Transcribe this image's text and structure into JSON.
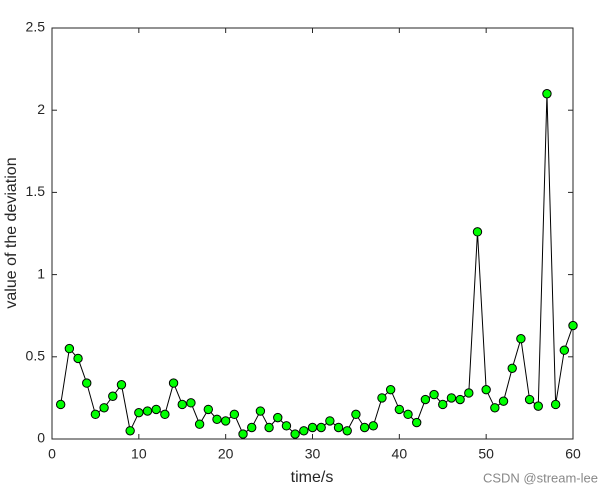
{
  "chart_data": {
    "type": "line",
    "xlabel": "time/s",
    "ylabel": "value of the deviation",
    "x": [
      1,
      2,
      3,
      4,
      5,
      6,
      7,
      8,
      9,
      10,
      11,
      12,
      13,
      14,
      15,
      16,
      17,
      18,
      19,
      20,
      21,
      22,
      23,
      24,
      25,
      26,
      27,
      28,
      29,
      30,
      31,
      32,
      33,
      34,
      35,
      36,
      37,
      38,
      39,
      40,
      41,
      42,
      43,
      44,
      45,
      46,
      47,
      48,
      49,
      50,
      51,
      52,
      53,
      54,
      55,
      56,
      57,
      58,
      59,
      60
    ],
    "series": [
      {
        "color": "#000000",
        "marker_color": "#00ff00",
        "values": [
          0.21,
          0.55,
          0.49,
          0.34,
          0.15,
          0.19,
          0.26,
          0.33,
          0.05,
          0.16,
          0.17,
          0.18,
          0.15,
          0.34,
          0.21,
          0.22,
          0.09,
          0.18,
          0.12,
          0.11,
          0.15,
          0.03,
          0.07,
          0.17,
          0.07,
          0.13,
          0.08,
          0.03,
          0.05,
          0.07,
          0.07,
          0.11,
          0.07,
          0.05,
          0.15,
          0.07,
          0.08,
          0.25,
          0.3,
          0.18,
          0.15,
          0.1,
          0.24,
          0.27,
          0.21,
          0.25,
          0.24,
          0.28,
          1.26,
          0.3,
          0.19,
          0.23,
          0.43,
          0.61,
          0.24,
          0.2,
          2.1,
          0.21,
          0.54,
          0.69
        ]
      }
    ],
    "xlim": [
      0,
      60
    ],
    "xticks": [
      0,
      10,
      20,
      30,
      40,
      50,
      60
    ],
    "ylim": [
      0,
      2.5
    ],
    "yticks": [
      0,
      0.5,
      1,
      1.5,
      2,
      2.5
    ],
    "grid": false
  },
  "watermark": "CSDN @stream-lee"
}
